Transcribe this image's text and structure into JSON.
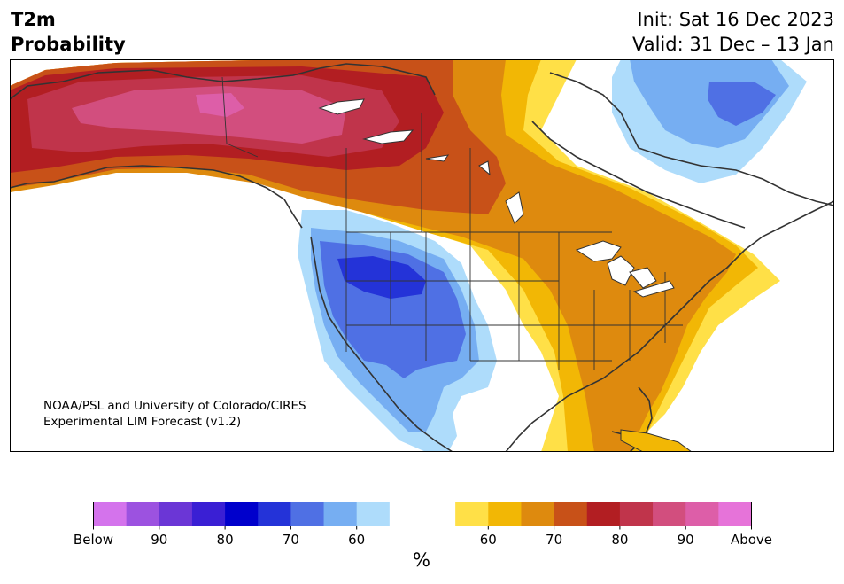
{
  "title": {
    "line1": "T2m",
    "line2": "Probability"
  },
  "dates": {
    "init": "Init: Sat 16 Dec 2023",
    "valid": "Valid: 31 Dec – 13 Jan"
  },
  "credit": {
    "line1": "NOAA/PSL and University of Colorado/CIRES",
    "line2": "Experimental LIM Forecast (v1.2)"
  },
  "colorbar": {
    "unit": "%",
    "colors": [
      "#d473ec",
      "#9c52e0",
      "#6b36d6",
      "#3a1fd4",
      "#0000cc",
      "#2433d8",
      "#4f70e4",
      "#76aef2",
      "#aedcfb",
      "#ffffff",
      "#ffffff",
      "#ffe047",
      "#f2b705",
      "#de8a0e",
      "#c85118",
      "#b21e22",
      "#c0344b",
      "#d24e7e",
      "#dd5ea8",
      "#e673d9"
    ],
    "labels": [
      "Below",
      "90",
      "80",
      "70",
      "60",
      "60",
      "70",
      "80",
      "90",
      "Above"
    ]
  },
  "legend_colors": {
    "below_high": "#2433d8",
    "below_mid": "#4f70e4",
    "below_low": "#aedcfb",
    "above_low": "#ffe047",
    "above_mid": "#de8a0e",
    "above_high": "#b21e22",
    "above_top": "#c0344b"
  }
}
